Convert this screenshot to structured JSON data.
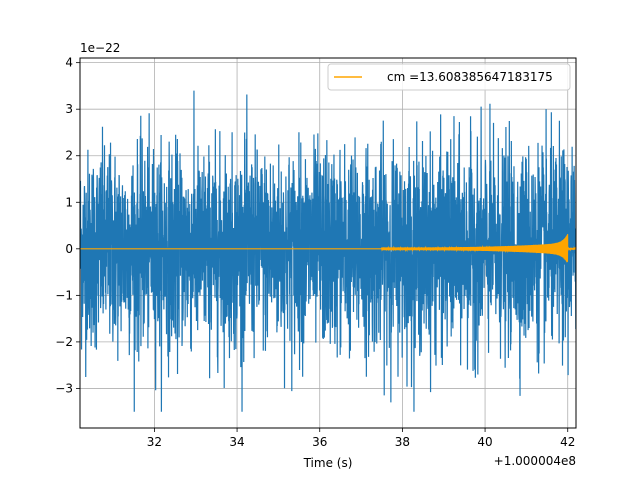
{
  "chart_data": {
    "type": "line",
    "title": "",
    "xlabel": "Time (s)",
    "ylabel": "",
    "x_offset_label": "+1.000004e8",
    "y_scale_label": "1e−22",
    "xlim": [
      30.2,
      42.2
    ],
    "ylim": [
      -3.85,
      4.1
    ],
    "x_ticks": [
      32,
      34,
      36,
      38,
      40,
      42
    ],
    "x_tick_labels": [
      "32",
      "34",
      "36",
      "38",
      "40",
      "42"
    ],
    "y_ticks": [
      -3,
      -2,
      -1,
      0,
      1,
      2,
      3,
      4
    ],
    "y_tick_labels": [
      "−3",
      "−2",
      "−1",
      "0",
      "1",
      "2",
      "3",
      "4"
    ],
    "grid": true,
    "legend_position": "top-right",
    "series": [
      {
        "kind": "noise",
        "color": "#1f77b4",
        "x_range": [
          30.2,
          42.2
        ],
        "envelope": [
          -3.5,
          3.4
        ]
      },
      {
        "name": "cm =13.608385647183175",
        "kind": "chirp",
        "color": "#ffa500",
        "x_start": 37.5,
        "x_peak": 42.0,
        "peak_amplitude": [
          -0.3,
          0.22
        ]
      }
    ]
  }
}
